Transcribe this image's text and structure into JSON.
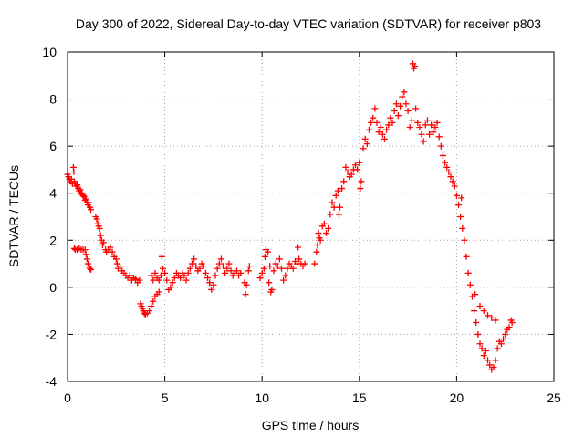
{
  "chart_data": {
    "type": "scatter",
    "title": "Day 300 of 2022, Sidereal Day-to-day VTEC variation (SDTVAR) for receiver p803",
    "xlabel": "GPS time / hours",
    "ylabel": "SDTVAR / TECUs",
    "xlim": [
      0,
      25
    ],
    "ylim": [
      -4,
      10
    ],
    "xticks": [
      0,
      5,
      10,
      15,
      20,
      25
    ],
    "xtick_labels": [
      "0",
      "5",
      "10",
      "15",
      "20",
      "25"
    ],
    "yticks": [
      -4,
      -2,
      0,
      2,
      4,
      6,
      8,
      10
    ],
    "ytick_labels": [
      "-4",
      "-2",
      "0",
      "2",
      "4",
      "6",
      "8",
      "10"
    ],
    "grid": true,
    "marker": "plus",
    "color": "#ff0000",
    "series": [
      {
        "name": "SDTVAR",
        "points": [
          [
            0.0,
            4.8
          ],
          [
            0.05,
            4.7
          ],
          [
            0.1,
            4.6
          ],
          [
            0.15,
            4.5
          ],
          [
            0.2,
            4.6
          ],
          [
            0.25,
            4.4
          ],
          [
            0.3,
            5.1
          ],
          [
            0.32,
            4.9
          ],
          [
            0.35,
            4.5
          ],
          [
            0.4,
            4.4
          ],
          [
            0.45,
            4.3
          ],
          [
            0.5,
            4.35
          ],
          [
            0.55,
            4.2
          ],
          [
            0.6,
            4.1
          ],
          [
            0.65,
            4.15
          ],
          [
            0.7,
            4.0
          ],
          [
            0.75,
            3.95
          ],
          [
            0.8,
            3.9
          ],
          [
            0.85,
            3.85
          ],
          [
            0.9,
            3.7
          ],
          [
            0.95,
            3.75
          ],
          [
            1.0,
            3.6
          ],
          [
            1.05,
            3.5
          ],
          [
            1.1,
            3.6
          ],
          [
            1.15,
            3.4
          ],
          [
            1.2,
            3.3
          ],
          [
            0.35,
            1.65
          ],
          [
            0.4,
            1.6
          ],
          [
            0.5,
            1.6
          ],
          [
            0.6,
            1.65
          ],
          [
            0.7,
            1.6
          ],
          [
            0.8,
            1.6
          ],
          [
            0.9,
            1.6
          ],
          [
            0.95,
            1.4
          ],
          [
            1.0,
            1.2
          ],
          [
            1.05,
            1.0
          ],
          [
            1.1,
            0.9
          ],
          [
            1.15,
            0.8
          ],
          [
            1.2,
            0.75
          ],
          [
            1.45,
            3.0
          ],
          [
            1.5,
            2.9
          ],
          [
            1.55,
            2.7
          ],
          [
            1.6,
            2.6
          ],
          [
            1.65,
            2.5
          ],
          [
            1.7,
            2.2
          ],
          [
            1.75,
            2.0
          ],
          [
            1.8,
            1.8
          ],
          [
            1.85,
            1.9
          ],
          [
            1.95,
            1.6
          ],
          [
            2.0,
            1.5
          ],
          [
            2.1,
            1.6
          ],
          [
            2.2,
            1.7
          ],
          [
            2.3,
            1.5
          ],
          [
            2.4,
            1.3
          ],
          [
            2.5,
            1.2
          ],
          [
            2.55,
            1.0
          ],
          [
            2.6,
            0.8
          ],
          [
            2.7,
            0.9
          ],
          [
            2.8,
            0.7
          ],
          [
            2.9,
            0.6
          ],
          [
            3.0,
            0.5
          ],
          [
            3.1,
            0.4
          ],
          [
            3.2,
            0.5
          ],
          [
            3.3,
            0.3
          ],
          [
            3.4,
            0.4
          ],
          [
            3.5,
            0.35
          ],
          [
            3.6,
            0.2
          ],
          [
            3.7,
            0.3
          ],
          [
            3.75,
            -0.7
          ],
          [
            3.8,
            -0.8
          ],
          [
            3.85,
            -0.9
          ],
          [
            3.9,
            -1.0
          ],
          [
            3.95,
            -1.1
          ],
          [
            4.0,
            -1.15
          ],
          [
            4.1,
            -1.1
          ],
          [
            4.2,
            -1.0
          ],
          [
            4.3,
            -0.8
          ],
          [
            4.4,
            -0.6
          ],
          [
            4.5,
            -0.4
          ],
          [
            4.6,
            -0.3
          ],
          [
            4.7,
            -0.2
          ],
          [
            4.3,
            0.5
          ],
          [
            4.4,
            0.3
          ],
          [
            4.5,
            0.6
          ],
          [
            4.6,
            0.4
          ],
          [
            4.7,
            0.3
          ],
          [
            4.8,
            0.5
          ],
          [
            4.85,
            1.3
          ],
          [
            4.9,
            0.8
          ],
          [
            5.0,
            0.6
          ],
          [
            5.1,
            0.3
          ],
          [
            5.2,
            -0.1
          ],
          [
            5.3,
            0.0
          ],
          [
            5.4,
            0.2
          ],
          [
            5.5,
            0.4
          ],
          [
            5.6,
            0.6
          ],
          [
            5.7,
            0.5
          ],
          [
            5.8,
            0.4
          ],
          [
            5.9,
            0.6
          ],
          [
            6.0,
            0.5
          ],
          [
            6.1,
            0.3
          ],
          [
            6.2,
            0.6
          ],
          [
            6.3,
            0.8
          ],
          [
            6.4,
            1.0
          ],
          [
            6.5,
            1.2
          ],
          [
            6.6,
            0.9
          ],
          [
            6.7,
            0.7
          ],
          [
            6.8,
            0.8
          ],
          [
            6.9,
            1.0
          ],
          [
            7.0,
            0.9
          ],
          [
            7.1,
            0.6
          ],
          [
            7.2,
            0.4
          ],
          [
            7.3,
            0.2
          ],
          [
            7.4,
            -0.1
          ],
          [
            7.5,
            0.1
          ],
          [
            7.6,
            0.5
          ],
          [
            7.7,
            0.8
          ],
          [
            7.8,
            1.0
          ],
          [
            7.9,
            1.2
          ],
          [
            8.0,
            0.9
          ],
          [
            8.1,
            0.6
          ],
          [
            8.2,
            0.8
          ],
          [
            8.3,
            1.0
          ],
          [
            8.4,
            0.7
          ],
          [
            8.5,
            0.5
          ],
          [
            8.6,
            0.6
          ],
          [
            8.7,
            0.7
          ],
          [
            8.8,
            0.5
          ],
          [
            8.9,
            0.6
          ],
          [
            9.1,
            0.2
          ],
          [
            9.15,
            -0.3
          ],
          [
            9.2,
            0.1
          ],
          [
            9.3,
            0.7
          ],
          [
            9.35,
            0.9
          ],
          [
            9.9,
            0.4
          ],
          [
            10.0,
            0.6
          ],
          [
            10.1,
            0.8
          ],
          [
            10.15,
            1.3
          ],
          [
            10.2,
            1.6
          ],
          [
            10.3,
            1.5
          ],
          [
            10.35,
            0.2
          ],
          [
            10.4,
            0.9
          ],
          [
            10.45,
            -0.2
          ],
          [
            10.5,
            -0.1
          ],
          [
            10.6,
            0.7
          ],
          [
            10.7,
            1.0
          ],
          [
            10.8,
            0.9
          ],
          [
            10.9,
            1.2
          ],
          [
            11.0,
            0.8
          ],
          [
            11.1,
            0.3
          ],
          [
            11.2,
            0.5
          ],
          [
            11.3,
            0.8
          ],
          [
            11.4,
            1.0
          ],
          [
            11.5,
            0.9
          ],
          [
            11.6,
            0.8
          ],
          [
            11.7,
            1.1
          ],
          [
            11.8,
            1.0
          ],
          [
            11.85,
            1.7
          ],
          [
            11.9,
            1.2
          ],
          [
            12.0,
            1.0
          ],
          [
            12.1,
            0.9
          ],
          [
            12.2,
            1.0
          ],
          [
            12.7,
            1.0
          ],
          [
            12.8,
            1.5
          ],
          [
            12.85,
            1.8
          ],
          [
            12.9,
            2.3
          ],
          [
            12.95,
            2.1
          ],
          [
            13.0,
            2.0
          ],
          [
            13.1,
            2.6
          ],
          [
            13.2,
            2.7
          ],
          [
            13.3,
            2.3
          ],
          [
            13.4,
            2.5
          ],
          [
            13.5,
            3.1
          ],
          [
            13.6,
            3.6
          ],
          [
            13.7,
            3.4
          ],
          [
            13.8,
            3.9
          ],
          [
            13.9,
            4.1
          ],
          [
            13.95,
            3.1
          ],
          [
            14.0,
            3.4
          ],
          [
            14.1,
            4.2
          ],
          [
            14.2,
            4.5
          ],
          [
            14.3,
            5.1
          ],
          [
            14.4,
            4.9
          ],
          [
            14.5,
            4.7
          ],
          [
            14.6,
            4.8
          ],
          [
            14.7,
            5.0
          ],
          [
            14.8,
            5.2
          ],
          [
            14.9,
            5.0
          ],
          [
            15.0,
            5.3
          ],
          [
            15.05,
            4.2
          ],
          [
            15.1,
            4.5
          ],
          [
            15.2,
            5.9
          ],
          [
            15.3,
            6.3
          ],
          [
            15.4,
            6.1
          ],
          [
            15.5,
            6.7
          ],
          [
            15.6,
            7.0
          ],
          [
            15.7,
            7.2
          ],
          [
            15.8,
            7.6
          ],
          [
            15.9,
            7.0
          ],
          [
            16.0,
            6.6
          ],
          [
            16.1,
            6.8
          ],
          [
            16.2,
            6.5
          ],
          [
            16.3,
            6.3
          ],
          [
            16.4,
            6.7
          ],
          [
            16.5,
            6.9
          ],
          [
            16.6,
            7.2
          ],
          [
            16.7,
            7.0
          ],
          [
            16.8,
            7.5
          ],
          [
            16.9,
            7.8
          ],
          [
            17.0,
            7.3
          ],
          [
            17.1,
            7.7
          ],
          [
            17.2,
            8.1
          ],
          [
            17.3,
            8.3
          ],
          [
            17.4,
            7.8
          ],
          [
            17.5,
            7.5
          ],
          [
            17.6,
            6.8
          ],
          [
            17.7,
            7.1
          ],
          [
            17.75,
            9.5
          ],
          [
            17.8,
            9.3
          ],
          [
            17.85,
            9.4
          ],
          [
            17.9,
            7.6
          ],
          [
            18.0,
            7.0
          ],
          [
            18.1,
            6.8
          ],
          [
            18.2,
            6.5
          ],
          [
            18.3,
            6.2
          ],
          [
            18.4,
            6.9
          ],
          [
            18.5,
            7.1
          ],
          [
            18.6,
            6.5
          ],
          [
            18.7,
            6.9
          ],
          [
            18.8,
            6.6
          ],
          [
            18.9,
            6.8
          ],
          [
            19.0,
            7.0
          ],
          [
            19.1,
            6.4
          ],
          [
            19.2,
            6.0
          ],
          [
            19.3,
            5.6
          ],
          [
            19.4,
            5.3
          ],
          [
            19.5,
            5.1
          ],
          [
            19.6,
            4.9
          ],
          [
            19.7,
            4.7
          ],
          [
            19.8,
            4.5
          ],
          [
            19.9,
            4.3
          ],
          [
            20.0,
            3.9
          ],
          [
            20.1,
            3.5
          ],
          [
            20.2,
            3.0
          ],
          [
            20.25,
            3.8
          ],
          [
            20.3,
            2.5
          ],
          [
            20.4,
            2.0
          ],
          [
            20.5,
            1.3
          ],
          [
            20.6,
            0.6
          ],
          [
            20.7,
            0.1
          ],
          [
            20.8,
            -0.4
          ],
          [
            20.9,
            -1.0
          ],
          [
            20.95,
            -0.3
          ],
          [
            21.0,
            -1.5
          ],
          [
            21.1,
            -2.0
          ],
          [
            21.2,
            -2.4
          ],
          [
            21.3,
            -2.6
          ],
          [
            21.4,
            -2.9
          ],
          [
            21.5,
            -2.7
          ],
          [
            21.6,
            -3.1
          ],
          [
            21.7,
            -3.3
          ],
          [
            21.8,
            -3.5
          ],
          [
            21.9,
            -3.4
          ],
          [
            22.0,
            -3.1
          ],
          [
            22.1,
            -2.6
          ],
          [
            22.2,
            -2.3
          ],
          [
            22.3,
            -2.4
          ],
          [
            22.4,
            -2.2
          ],
          [
            22.5,
            -2.0
          ],
          [
            22.6,
            -1.8
          ],
          [
            22.7,
            -1.7
          ],
          [
            22.8,
            -1.4
          ],
          [
            22.85,
            -1.5
          ],
          [
            21.2,
            -0.8
          ],
          [
            21.4,
            -1.0
          ],
          [
            21.6,
            -1.2
          ],
          [
            21.8,
            -1.3
          ],
          [
            22.0,
            -1.4
          ]
        ]
      }
    ]
  }
}
